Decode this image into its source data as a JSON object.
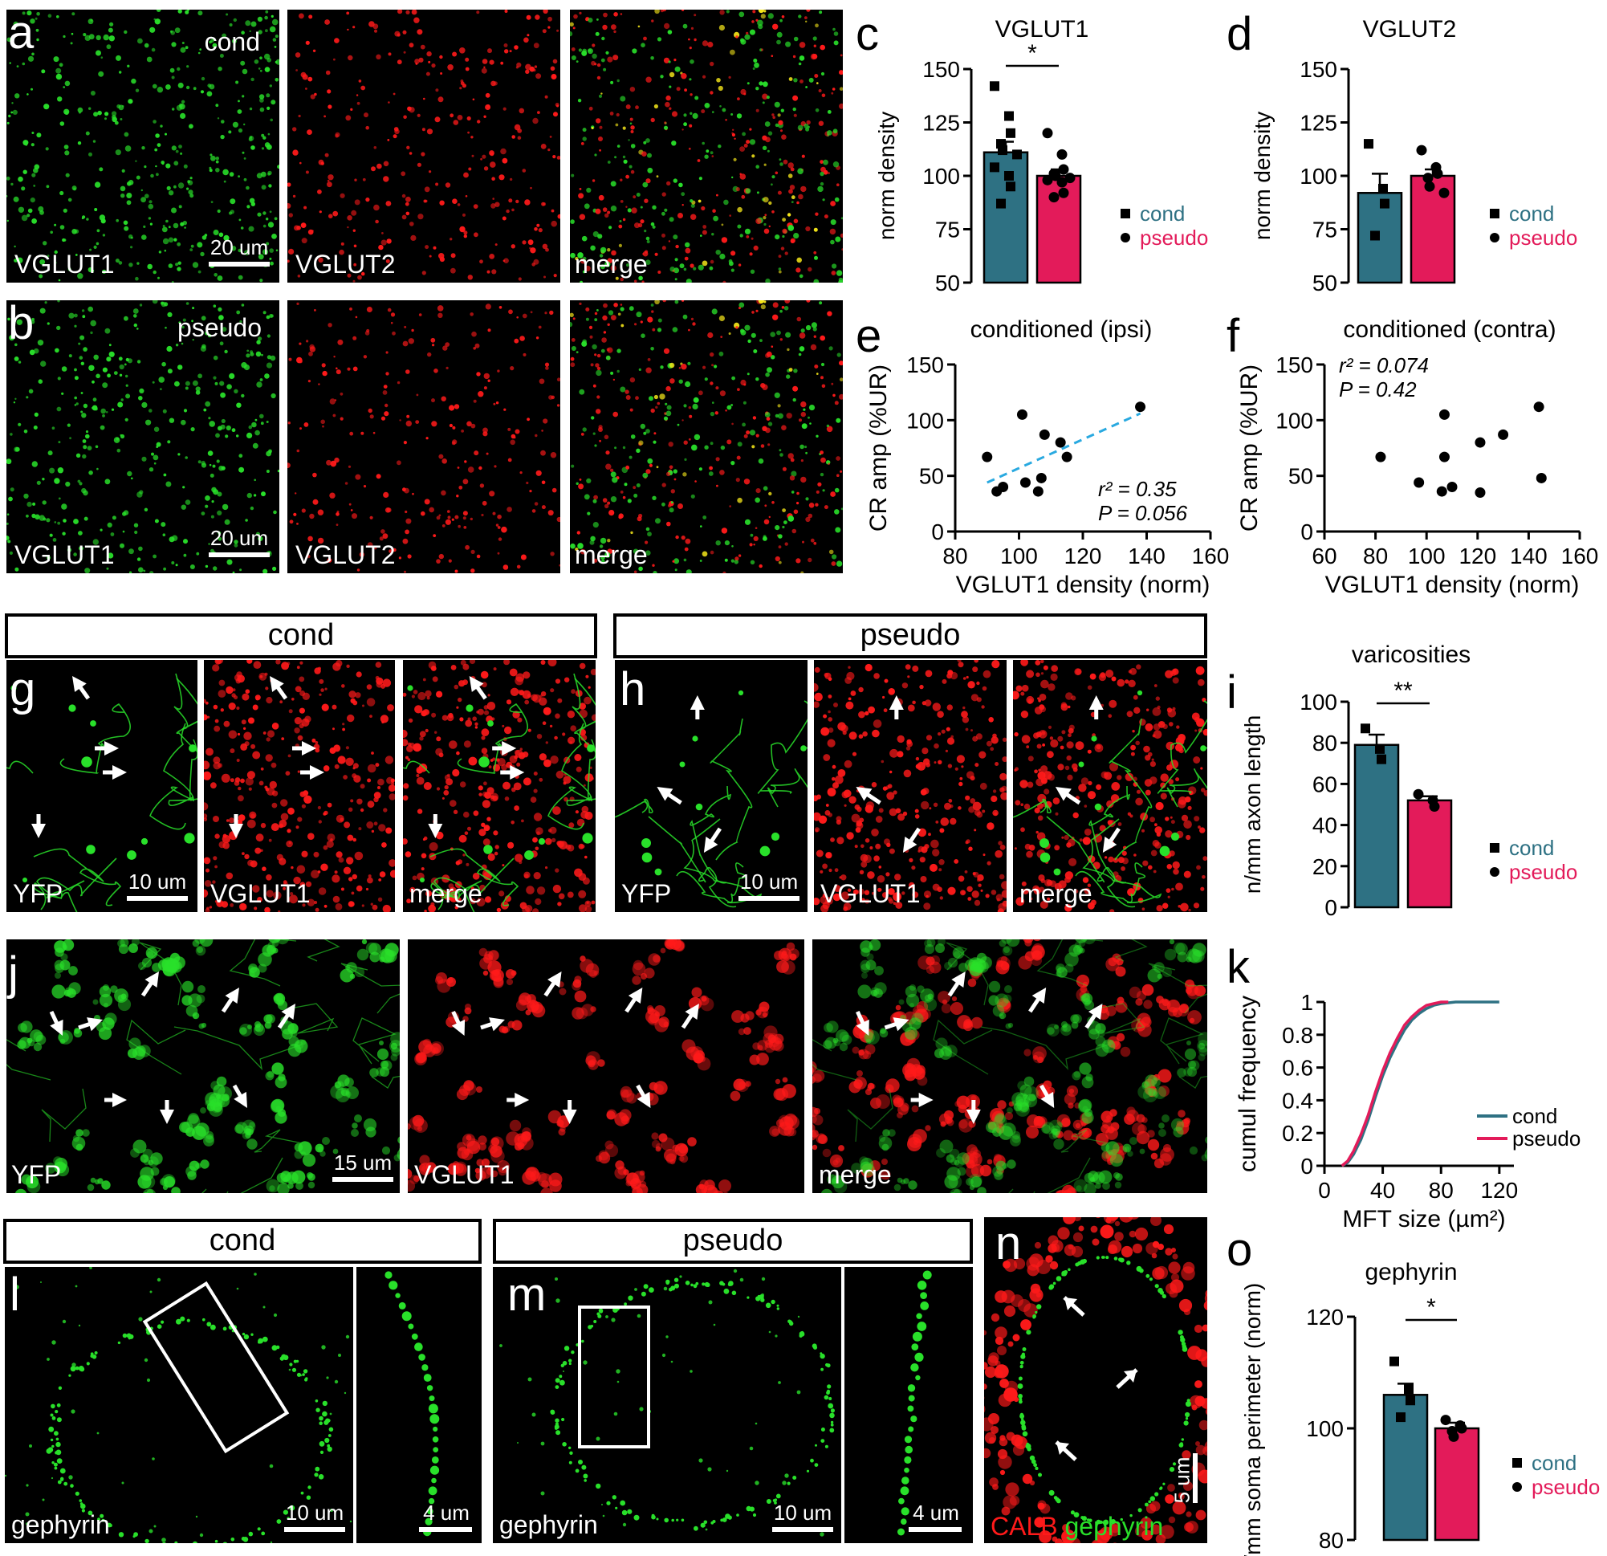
{
  "colors": {
    "cond": "#2e7183",
    "pseudo": "#e31b5a",
    "green": "#29e02a",
    "red": "#ff1a1a",
    "regression": "#29a9e0"
  },
  "letters": {
    "a": "a",
    "b": "b",
    "c": "c",
    "d": "d",
    "e": "e",
    "f": "f",
    "g": "g",
    "h": "h",
    "i": "i",
    "j": "j",
    "k": "k",
    "l": "l",
    "m": "m",
    "n": "n",
    "o": "o"
  },
  "row_a": {
    "tag": "cond",
    "labels": [
      "VGLUT1",
      "VGLUT2",
      "merge"
    ],
    "scale": "20 um"
  },
  "row_b": {
    "tag": "pseudo",
    "labels": [
      "VGLUT1",
      "VGLUT2",
      "merge"
    ],
    "scale": "20 um"
  },
  "g_box": {
    "title": "cond"
  },
  "h_box": {
    "title": "pseudo"
  },
  "row_g": {
    "labels": [
      "YFP",
      "VGLUT1",
      "merge"
    ],
    "scale": "10 um"
  },
  "row_h": {
    "labels": [
      "YFP",
      "VGLUT1",
      "merge"
    ],
    "scale": "10 um"
  },
  "row_j": {
    "labels": [
      "YFP",
      "VGLUT1",
      "merge"
    ],
    "scale": "15 um"
  },
  "l_box": {
    "title": "cond"
  },
  "m_box": {
    "title": "pseudo"
  },
  "row_l": {
    "label": "gephyrin",
    "scale": "10 um",
    "scale_zoom": "4 um"
  },
  "row_m": {
    "label": "gephyrin",
    "scale": "10 um",
    "scale_zoom": "4 um"
  },
  "row_n": {
    "label_red": "CALB",
    "label_green": "gephyrin",
    "scale": "5 um"
  },
  "chart_data": [
    {
      "id": "c",
      "type": "bar",
      "title": "VGLUT1",
      "ylabel": "norm density",
      "ylim": [
        50,
        150
      ],
      "yticks": [
        50,
        75,
        100,
        125,
        150
      ],
      "categories": [
        "cond",
        "pseudo"
      ],
      "values": [
        111,
        100
      ],
      "sem": [
        5,
        3
      ],
      "points": {
        "cond": [
          142,
          128,
          120,
          115,
          112,
          110,
          104,
          100,
          95,
          87
        ],
        "pseudo": [
          120,
          110,
          103,
          101,
          100,
          99,
          98,
          97,
          92,
          90
        ]
      },
      "significance": "*",
      "legend": [
        "cond",
        "pseudo"
      ]
    },
    {
      "id": "d",
      "type": "bar",
      "title": "VGLUT2",
      "ylabel": "norm density",
      "ylim": [
        50,
        150
      ],
      "yticks": [
        50,
        75,
        100,
        125,
        150
      ],
      "categories": [
        "cond",
        "pseudo"
      ],
      "values": [
        92,
        100
      ],
      "sem": [
        9,
        3
      ],
      "points": {
        "cond": [
          115,
          94,
          87,
          72
        ],
        "pseudo": [
          112,
          104,
          101,
          99,
          95,
          92
        ]
      },
      "significance": "",
      "legend": [
        "cond",
        "pseudo"
      ]
    },
    {
      "id": "e",
      "type": "scatter",
      "title": "conditioned (ipsi)",
      "xlabel": "VGLUT1 density (norm)",
      "ylabel": "CR amp (%UR)",
      "xlim": [
        80,
        160
      ],
      "ylim": [
        0,
        150
      ],
      "xticks": [
        80,
        100,
        120,
        140,
        160
      ],
      "yticks": [
        0,
        50,
        100,
        150
      ],
      "points": [
        [
          90,
          67
        ],
        [
          93,
          36
        ],
        [
          95,
          40
        ],
        [
          101,
          105
        ],
        [
          102,
          44
        ],
        [
          106,
          36
        ],
        [
          107,
          48
        ],
        [
          108,
          87
        ],
        [
          113,
          80
        ],
        [
          115,
          67
        ],
        [
          138,
          112
        ]
      ],
      "fit": [
        [
          90,
          44
        ],
        [
          138,
          106
        ]
      ],
      "stats": [
        "r² = 0.35",
        "P = 0.056"
      ]
    },
    {
      "id": "f",
      "type": "scatter",
      "title": "conditioned (contra)",
      "xlabel": "VGLUT1 density (norm)",
      "ylabel": "CR amp (%UR)",
      "xlim": [
        60,
        160
      ],
      "ylim": [
        0,
        150
      ],
      "xticks": [
        60,
        80,
        100,
        120,
        140,
        160
      ],
      "yticks": [
        0,
        50,
        100,
        150
      ],
      "points": [
        [
          82,
          67
        ],
        [
          97,
          44
        ],
        [
          106,
          36
        ],
        [
          107,
          105
        ],
        [
          107,
          67
        ],
        [
          110,
          40
        ],
        [
          121,
          80
        ],
        [
          121,
          35
        ],
        [
          130,
          87
        ],
        [
          144,
          112
        ],
        [
          145,
          48
        ]
      ],
      "stats": [
        "r² = 0.074",
        "P = 0.42"
      ]
    },
    {
      "id": "i",
      "type": "bar",
      "title": "varicosities",
      "ylabel": "n/mm axon length",
      "ylim": [
        0,
        100
      ],
      "yticks": [
        0,
        20,
        40,
        60,
        80,
        100
      ],
      "categories": [
        "cond",
        "pseudo"
      ],
      "values": [
        79,
        52
      ],
      "sem": [
        5,
        2
      ],
      "points": {
        "cond": [
          87,
          77,
          72
        ],
        "pseudo": [
          55,
          52,
          49
        ]
      },
      "significance": "**",
      "legend": [
        "cond",
        "pseudo"
      ]
    },
    {
      "id": "k",
      "type": "line",
      "ylabel": "cumul frequency",
      "xlabel": "MFT size (µm²)",
      "xlim": [
        0,
        130
      ],
      "ylim": [
        0,
        1
      ],
      "xticks": [
        0,
        40,
        80,
        120
      ],
      "yticks": [
        "0",
        "0.2",
        "0.4",
        "0.6",
        "0.8",
        "1"
      ],
      "series": [
        {
          "name": "cond",
          "x": [
            12,
            16,
            20,
            25,
            30,
            35,
            40,
            45,
            50,
            55,
            60,
            65,
            70,
            75,
            80,
            85,
            90,
            100,
            110,
            120
          ],
          "y": [
            0,
            0.02,
            0.07,
            0.16,
            0.28,
            0.42,
            0.55,
            0.66,
            0.75,
            0.83,
            0.89,
            0.93,
            0.96,
            0.98,
            0.99,
            0.995,
            1,
            1,
            1,
            1
          ]
        },
        {
          "name": "pseudo",
          "x": [
            12,
            16,
            20,
            25,
            30,
            35,
            40,
            45,
            50,
            55,
            60,
            65,
            70,
            75,
            80,
            85
          ],
          "y": [
            0,
            0.03,
            0.09,
            0.19,
            0.31,
            0.45,
            0.58,
            0.69,
            0.78,
            0.86,
            0.91,
            0.95,
            0.98,
            0.99,
            1,
            1
          ]
        }
      ]
    },
    {
      "id": "o",
      "type": "bar",
      "title": "gephyrin",
      "ylabel": "n/mm soma perimeter (norm)",
      "ylim": [
        80,
        120
      ],
      "yticks": [
        80,
        100,
        120
      ],
      "categories": [
        "cond",
        "pseudo"
      ],
      "values": [
        106,
        100
      ],
      "sem": [
        2,
        1
      ],
      "points": {
        "cond": [
          112,
          107,
          105,
          102
        ],
        "pseudo": [
          101.5,
          100.5,
          100,
          99.5,
          98.5
        ]
      },
      "significance": "*",
      "legend": [
        "cond",
        "pseudo"
      ]
    }
  ]
}
